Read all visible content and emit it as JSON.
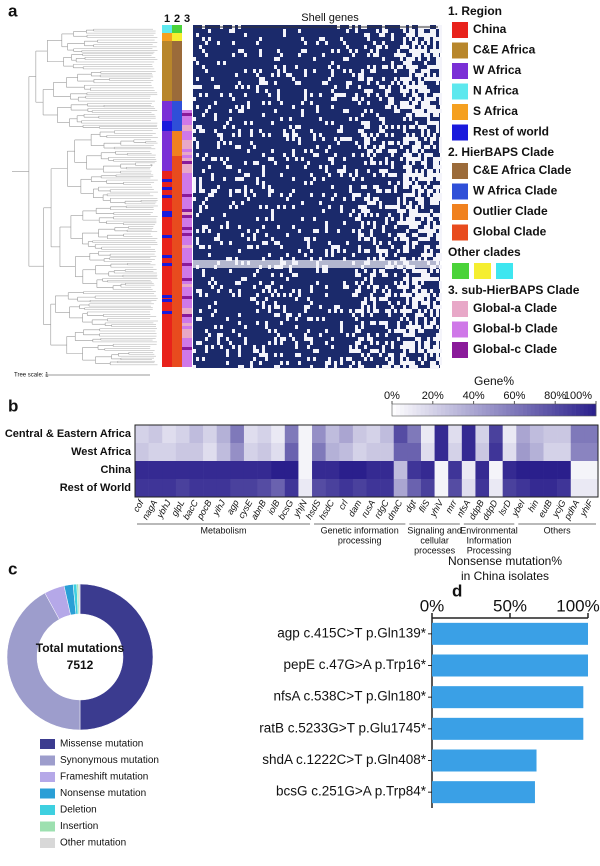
{
  "chart_data": [
    {
      "type": "tree-heatmap",
      "panel": "a",
      "title": "Shell genes",
      "tracks": [
        "1",
        "2",
        "3"
      ],
      "tree_scale": "Tree scale: 1",
      "legend": [
        {
          "title": "1. Region",
          "items": [
            {
              "name": "China",
              "color": "#e8221b"
            },
            {
              "name": "C&E Africa",
              "color": "#b8862b"
            },
            {
              "name": "W Africa",
              "color": "#7a2fd6"
            },
            {
              "name": "N Africa",
              "color": "#5ee8ee"
            },
            {
              "name": "S Africa",
              "color": "#f5a020"
            },
            {
              "name": "Rest of world",
              "color": "#1a1adc"
            }
          ]
        },
        {
          "title": "2. HierBAPS Clade",
          "items": [
            {
              "name": "C&E Africa Clade",
              "color": "#9b6b3a"
            },
            {
              "name": "W Africa Clade",
              "color": "#2f4fd8"
            },
            {
              "name": "Outlier Clade",
              "color": "#f0811f"
            },
            {
              "name": "Global Clade",
              "color": "#e84b1e"
            }
          ]
        },
        {
          "title": "Other clades",
          "items": [
            {
              "color": "#4bd33a"
            },
            {
              "color": "#f5ee30"
            },
            {
              "color": "#3ee6f0"
            }
          ]
        },
        {
          "title": "3. sub-HierBAPS Clade",
          "items": [
            {
              "name": "Global-a Clade",
              "color": "#e8a8c8"
            },
            {
              "name": "Global-b Clade",
              "color": "#cf78e8"
            },
            {
              "name": "Global-c Clade",
              "color": "#8a1a9a"
            }
          ]
        }
      ]
    },
    {
      "type": "heatmap",
      "panel": "b",
      "groups": [
        {
          "label": [
            "Metabolism"
          ],
          "categories": [
            "cof",
            "nagA",
            "ybhJ",
            "glpL",
            "bacC",
            "pocB",
            "yihJ",
            "agp",
            "cysE",
            "abnB",
            "iolB",
            "bcsG",
            "yhjN"
          ]
        },
        {
          "label": [
            "Genetic information",
            "processing"
          ],
          "categories": [
            "hsdS",
            "hsdC",
            "crl",
            "dam",
            "rusA",
            "rdgC",
            "dnaC"
          ]
        },
        {
          "label": [
            "Signaling and",
            "cellular",
            "processes"
          ],
          "categories": [
            "dgt",
            "fliS",
            "yhiV",
            "mrr"
          ]
        },
        {
          "label": [
            "Environmental",
            "Information",
            "Processing"
          ],
          "categories": [
            "nfsA",
            "ddpB",
            "ddpD",
            "lsrD"
          ]
        },
        {
          "label": [
            "Others"
          ],
          "categories": [
            "ybeI",
            "hin",
            "eutB",
            "ycjG",
            "pdhA",
            "yhiF"
          ]
        }
      ],
      "series": [
        {
          "name": "Central & Eastern Africa",
          "values": [
            20,
            25,
            15,
            20,
            30,
            20,
            35,
            60,
            15,
            20,
            10,
            60,
            5,
            50,
            30,
            40,
            25,
            20,
            30,
            80,
            60,
            10,
            95,
            15,
            95,
            20,
            85,
            10,
            40,
            30,
            25,
            25,
            60,
            60
          ]
        },
        {
          "name": "West Africa",
          "values": [
            25,
            20,
            20,
            25,
            25,
            15,
            30,
            50,
            20,
            25,
            15,
            70,
            5,
            60,
            35,
            30,
            20,
            25,
            25,
            70,
            70,
            15,
            95,
            20,
            95,
            25,
            90,
            15,
            45,
            35,
            20,
            20,
            55,
            55
          ]
        },
        {
          "name": "China",
          "values": [
            95,
            95,
            95,
            95,
            95,
            95,
            95,
            95,
            95,
            95,
            100,
            100,
            5,
            95,
            95,
            100,
            100,
            95,
            95,
            30,
            90,
            95,
            5,
            90,
            10,
            95,
            5,
            95,
            100,
            100,
            100,
            100,
            5,
            5
          ]
        },
        {
          "name": "Rest of World",
          "values": [
            90,
            90,
            90,
            85,
            90,
            90,
            90,
            85,
            85,
            80,
            70,
            90,
            10,
            80,
            85,
            90,
            85,
            90,
            90,
            40,
            70,
            85,
            5,
            80,
            15,
            90,
            10,
            85,
            90,
            95,
            95,
            90,
            10,
            10
          ]
        }
      ],
      "color_low": "#ffffff",
      "color_high": "#2a1f8c",
      "colorbar": {
        "title": "Gene%",
        "lim": [
          0,
          100
        ],
        "ticks": [
          {
            "value": 0,
            "label": "0%"
          },
          {
            "value": 20,
            "label": "20%"
          },
          {
            "value": 40,
            "label": "40%"
          },
          {
            "value": 60,
            "label": "60%"
          },
          {
            "value": 80,
            "label": "80%"
          },
          {
            "value": 100,
            "label": "100%"
          }
        ]
      }
    },
    {
      "type": "pie",
      "panel": "c",
      "donut": true,
      "center_text": [
        "Total mutations",
        "7512"
      ],
      "categories": [
        "Missense mutation",
        "Synonymous mutation",
        "Frameshift mutation",
        "Nonsense mutation",
        "Deletion",
        "Insertion",
        "Other mutation"
      ],
      "values": [
        50,
        42,
        4.5,
        2,
        0.8,
        0.4,
        0.3
      ],
      "colors": [
        "#3b3b8f",
        "#9d9dcc",
        "#b5a8e8",
        "#2a9fd6",
        "#3ed0e0",
        "#9de0b0",
        "#d8d8d8"
      ]
    },
    {
      "type": "bar",
      "panel": "d",
      "orientation": "horizontal",
      "title": [
        "Nonsense mutation%",
        "in China isolates"
      ],
      "categories": [
        "agp c.415C>T p.Gln139*",
        "pepE c.47G>A p.Trp16*",
        "nfsA c.538C>T p.Gln180*",
        "ratB c.5233G>T p.Glu1745*",
        "shdA c.1222C>T p.Gln408*",
        "bcsG c.251G>A p.Trp84*"
      ],
      "values": [
        100,
        100,
        97,
        97,
        67,
        66
      ],
      "color": "#3aa0e6",
      "xlim": [
        0,
        100
      ],
      "xticks": [
        {
          "value": 0,
          "label": "0%"
        },
        {
          "value": 50,
          "label": "50%"
        },
        {
          "value": 100,
          "label": "100%"
        }
      ]
    }
  ]
}
